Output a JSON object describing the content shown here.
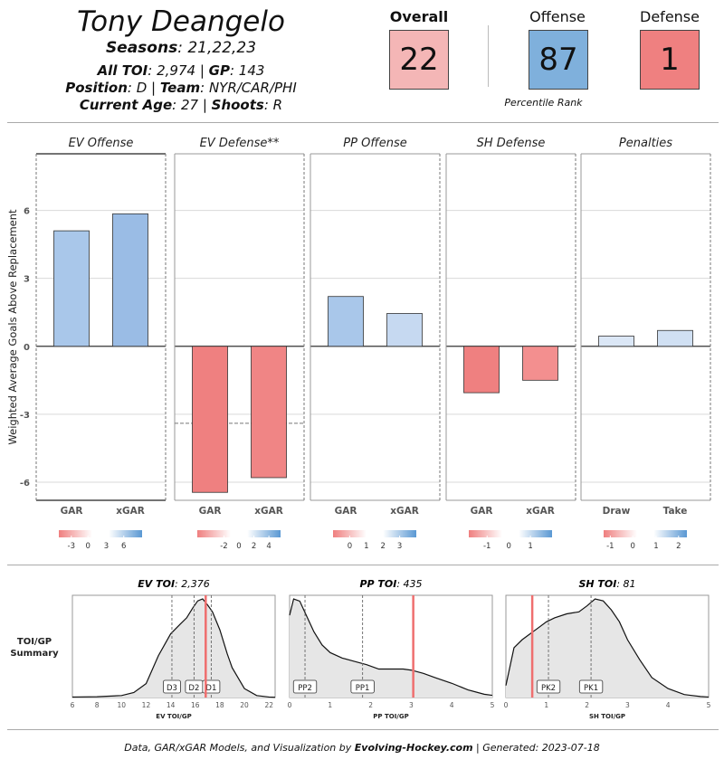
{
  "header": {
    "player_name": "Tony Deangelo",
    "seasons_label": "Seasons",
    "seasons": "21,22,23",
    "toi_label": "All TOI",
    "toi": "2,974",
    "gp_label": "GP",
    "gp": "143",
    "position_label": "Position",
    "position": "D",
    "team_label": "Team",
    "team": "NYR/CAR/PHI",
    "age_label": "Current Age",
    "age": "27",
    "shoots_label": "Shoots",
    "shoots": "R",
    "sep": " | "
  },
  "ranks": {
    "overall_label": "Overall",
    "overall": "22",
    "offense_label": "Offense",
    "offense": "87",
    "defense_label": "Defense",
    "defense": "1",
    "percentile_label": "Percentile Rank",
    "colors": {
      "overall": "#f4b6b6",
      "offense": "#7fb0dc",
      "defense": "#ef8080"
    }
  },
  "footer": {
    "prefix": "Data, GAR/xGAR Models, and Visualization by ",
    "brand": "Evolving-Hockey.com",
    "suffix": " | Generated: 2023-07-18"
  },
  "chart_data": [
    {
      "type": "bar",
      "ylabel": "Weighted Average Goals Above Replacement",
      "ylim": [
        -6.8,
        8.5
      ],
      "yticks": [
        -6,
        -3,
        0,
        3,
        6
      ],
      "panels": [
        {
          "title": "EV Offense",
          "categories": [
            "GAR",
            "xGAR"
          ],
          "values": [
            5.1,
            5.85
          ],
          "colors": [
            "#a9c7ea",
            "#9abce5"
          ],
          "dashed_ref": null,
          "legend": {
            "ticks": [
              "-3",
              "0",
              "3",
              "6"
            ],
            "positions": [
              0.15,
              0.35,
              0.57,
              0.78
            ]
          }
        },
        {
          "title": "EV Defense**",
          "categories": [
            "GAR",
            "xGAR"
          ],
          "values": [
            -6.45,
            -5.8
          ],
          "colors": [
            "#ef8080",
            "#f08585"
          ],
          "dashed_ref": -3.4,
          "legend": {
            "ticks": [
              "-2",
              "0",
              "2",
              "4"
            ],
            "positions": [
              0.32,
              0.5,
              0.68,
              0.86
            ]
          }
        },
        {
          "title": "PP Offense",
          "categories": [
            "GAR",
            "xGAR"
          ],
          "values": [
            2.2,
            1.45
          ],
          "colors": [
            "#a9c7ea",
            "#c6d9f1"
          ],
          "dashed_ref": null,
          "legend": {
            "ticks": [
              "0",
              "1",
              "2",
              "3"
            ],
            "positions": [
              0.2,
              0.4,
              0.6,
              0.8
            ]
          }
        },
        {
          "title": "SH Defense",
          "categories": [
            "GAR",
            "xGAR"
          ],
          "values": [
            -2.05,
            -1.5
          ],
          "colors": [
            "#ef8080",
            "#f38f8f"
          ],
          "dashed_ref": null,
          "legend": {
            "ticks": [
              "-1",
              "0",
              "1"
            ],
            "positions": [
              0.22,
              0.48,
              0.74
            ]
          }
        },
        {
          "title": "Penalties",
          "categories": [
            "Draw",
            "Take"
          ],
          "values": [
            0.45,
            0.7
          ],
          "colors": [
            "#dbe7f6",
            "#d0e0f3"
          ],
          "dashed_ref": null,
          "legend": {
            "ticks": [
              "-1",
              "0",
              "1",
              "2"
            ],
            "positions": [
              0.08,
              0.35,
              0.63,
              0.9
            ]
          }
        }
      ]
    },
    {
      "type": "area",
      "side_label": [
        "TOI/GP",
        "Summary"
      ],
      "panels": [
        {
          "title_label": "EV TOI",
          "title_value": "2,376",
          "xlabel": "EV TOI/GP",
          "xlim": [
            6,
            22.5
          ],
          "xticks": [
            6,
            8,
            10,
            12,
            14,
            16,
            18,
            20,
            22
          ],
          "density_x": [
            6,
            8,
            10,
            11,
            12,
            13,
            14,
            14.8,
            15.3,
            15.8,
            16.2,
            16.6,
            17,
            17.4,
            18,
            18.6,
            19,
            20,
            21,
            22,
            22.5
          ],
          "density_y": [
            0.005,
            0.008,
            0.02,
            0.05,
            0.14,
            0.42,
            0.64,
            0.74,
            0.8,
            0.9,
            0.97,
            0.99,
            0.93,
            0.86,
            0.68,
            0.44,
            0.3,
            0.09,
            0.02,
            0.005,
            0.002
          ],
          "player_value": 16.85,
          "markers": [
            {
              "label": "D3",
              "x": 14.1
            },
            {
              "label": "D2",
              "x": 15.9
            },
            {
              "label": "D1",
              "x": 17.3
            }
          ]
        },
        {
          "title_label": "PP TOI",
          "title_value": "435",
          "xlabel": "PP TOI/GP",
          "xlim": [
            0,
            5
          ],
          "xticks": [
            0,
            1,
            2,
            3,
            4,
            5
          ],
          "density_x": [
            0,
            0.1,
            0.25,
            0.4,
            0.6,
            0.8,
            1.0,
            1.3,
            1.6,
            1.9,
            2.2,
            2.5,
            2.8,
            3.0,
            3.3,
            3.6,
            4.0,
            4.4,
            4.8,
            5.0
          ],
          "density_y": [
            0.75,
            0.9,
            0.88,
            0.76,
            0.6,
            0.48,
            0.41,
            0.36,
            0.33,
            0.3,
            0.26,
            0.26,
            0.26,
            0.25,
            0.22,
            0.18,
            0.13,
            0.07,
            0.03,
            0.02
          ],
          "player_value": 3.05,
          "markers": [
            {
              "label": "PP2",
              "x": 0.38
            },
            {
              "label": "PP1",
              "x": 1.8
            }
          ]
        },
        {
          "title_label": "SH TOI",
          "title_value": "81",
          "xlabel": "SH TOI/GP",
          "xlim": [
            0,
            5
          ],
          "xticks": [
            0,
            1,
            2,
            3,
            4,
            5
          ],
          "density_x": [
            0,
            0.2,
            0.4,
            0.6,
            0.8,
            1.0,
            1.2,
            1.5,
            1.8,
            2.0,
            2.2,
            2.4,
            2.6,
            2.8,
            3.0,
            3.3,
            3.6,
            4.0,
            4.4,
            4.8,
            5.0
          ],
          "density_y": [
            0.12,
            0.5,
            0.58,
            0.64,
            0.7,
            0.76,
            0.8,
            0.84,
            0.86,
            0.92,
            0.99,
            0.97,
            0.88,
            0.76,
            0.58,
            0.38,
            0.2,
            0.09,
            0.03,
            0.01,
            0.005
          ],
          "player_value": 0.65,
          "markers": [
            {
              "label": "PK2",
              "x": 1.05
            },
            {
              "label": "PK1",
              "x": 2.1
            }
          ]
        }
      ]
    }
  ]
}
